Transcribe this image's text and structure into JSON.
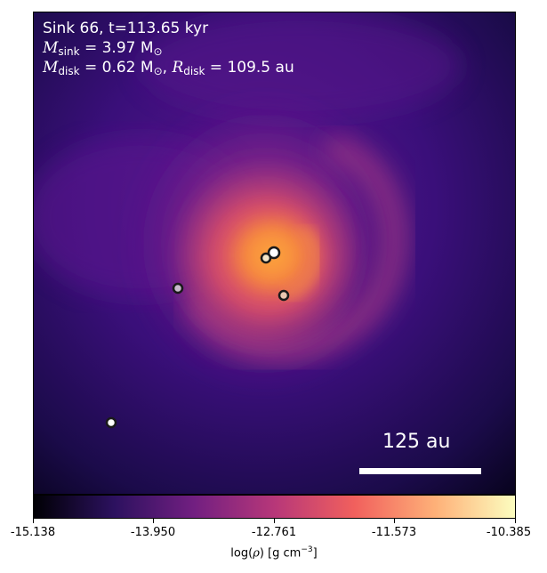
{
  "annotation": {
    "line1": "Sink 66, t=113.65 kyr",
    "msink_label": "M",
    "msink_sub": "sink",
    "msink_value": " = 3.97 M",
    "msink_sun": "⊙",
    "mdisk_label": "M",
    "mdisk_sub": "disk",
    "mdisk_value": " = 0.62 M",
    "mdisk_sun": "⊙",
    "rdisk_sep": ", ",
    "rdisk_label": "R",
    "rdisk_sub": "disk",
    "rdisk_value": " = 109.5 au"
  },
  "scale_bar": {
    "label": "125 au"
  },
  "colorbar": {
    "ticks": [
      "-15.138",
      "-13.950",
      "-12.761",
      "-11.573",
      "-10.385"
    ],
    "label_prefix": "log(",
    "label_rho": "ρ",
    "label_mid": ") [g cm",
    "label_exp": "−3",
    "label_suffix": "]",
    "colormap": "plasma",
    "colors": [
      "#000004",
      "#2c115f",
      "#721f81",
      "#b73779",
      "#f1605d",
      "#feb078",
      "#fcfdbf"
    ]
  },
  "sinks": [
    {
      "name": "sink-main",
      "face": "#ffffff"
    },
    {
      "name": "sink-companion-a",
      "face": "#f5e6c8"
    },
    {
      "name": "sink-companion-b",
      "face": "#e9c6b0"
    },
    {
      "name": "sink-companion-c",
      "face": "#c9bccd"
    },
    {
      "name": "sink-companion-d",
      "face": "#ffffff"
    }
  ]
}
